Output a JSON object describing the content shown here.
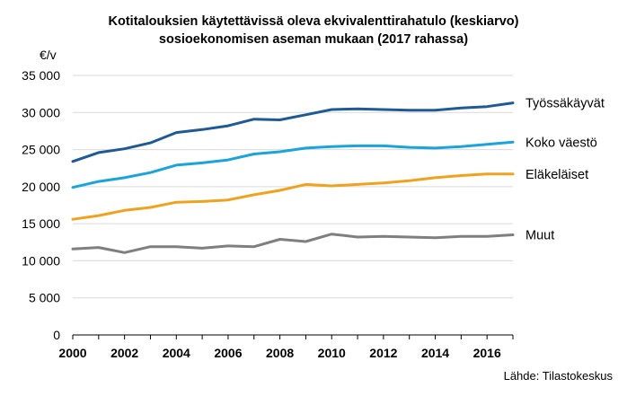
{
  "chart_data": {
    "type": "line",
    "title": "Kotitalouksien käytettävissä oleva ekvivalenttirahatulo (keskiarvo)",
    "subtitle": "sosioekonomisen aseman mukaan (2017 rahassa)",
    "ylabel": "€/v",
    "source": "Lähde: Tilastokeskus",
    "xlim": [
      2000,
      2017
    ],
    "ylim": [
      0,
      35000
    ],
    "x_ticks": [
      "2000",
      "2002",
      "2004",
      "2006",
      "2008",
      "2010",
      "2012",
      "2014",
      "2016"
    ],
    "y_ticks": [
      "0",
      "5 000",
      "10 000",
      "15 000",
      "20 000",
      "25 000",
      "30 000",
      "35 000"
    ],
    "grid": true,
    "legend": "none",
    "x": [
      2000,
      2001,
      2002,
      2003,
      2004,
      2005,
      2006,
      2007,
      2008,
      2009,
      2010,
      2011,
      2012,
      2013,
      2014,
      2015,
      2016,
      2017
    ],
    "series": [
      {
        "name": "Työssäkäyvät",
        "color": "#1f5a96",
        "values": [
          23400,
          24600,
          25100,
          25900,
          27300,
          27700,
          28200,
          29100,
          29000,
          29700,
          30400,
          30500,
          30400,
          30300,
          30300,
          30600,
          30800,
          31300
        ]
      },
      {
        "name": "Koko väestö",
        "color": "#1aa3dc",
        "values": [
          19900,
          20700,
          21200,
          21900,
          22900,
          23200,
          23600,
          24400,
          24700,
          25200,
          25400,
          25500,
          25500,
          25300,
          25200,
          25400,
          25700,
          26000
        ]
      },
      {
        "name": "Eläkeläiset",
        "color": "#f0a21e",
        "values": [
          15600,
          16100,
          16800,
          17200,
          17900,
          18000,
          18200,
          18900,
          19500,
          20300,
          20100,
          20300,
          20500,
          20800,
          21200,
          21500,
          21700,
          21700
        ]
      },
      {
        "name": "Muut",
        "color": "#7f7f7f",
        "values": [
          11600,
          11800,
          11100,
          11900,
          11900,
          11700,
          12000,
          11900,
          12900,
          12600,
          13600,
          13200,
          13300,
          13200,
          13100,
          13300,
          13300,
          13500
        ]
      }
    ]
  }
}
